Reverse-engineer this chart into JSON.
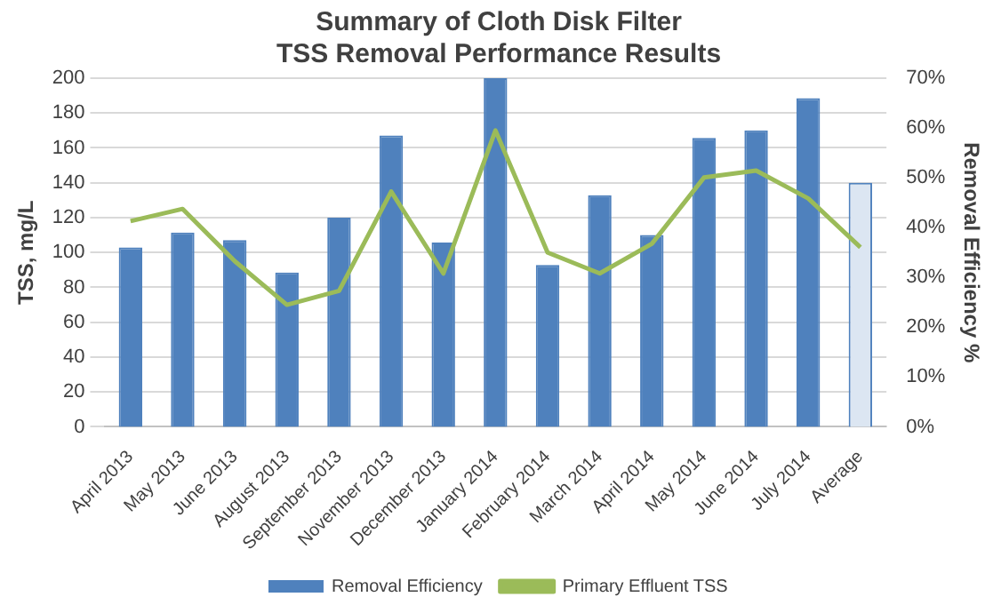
{
  "chart_data": {
    "type": "bar",
    "title": "Summary of Cloth Disk Filter\nTSS Removal Performance Results",
    "ylabel": "TSS, mg/L",
    "y2label": "Removal Efficiency %",
    "categories": [
      "April 2013",
      "May 2013",
      "June 2013",
      "August 2013",
      "September 2013",
      "November 2013",
      "December 2013",
      "January 2014",
      "February 2014",
      "March 2014",
      "April 2014",
      "May 2014",
      "June 2014",
      "July 2014",
      "Average"
    ],
    "series": [
      {
        "name": "Removal Efficiency",
        "axis": "y2",
        "color": "#4f81bd",
        "colors": [
          "#4f81bd",
          "#4f81bd",
          "#4f81bd",
          "#4f81bd",
          "#4f81bd",
          "#4f81bd",
          "#4f81bd",
          "#4f81bd",
          "#4f81bd",
          "#4f81bd",
          "#4f81bd",
          "#4f81bd",
          "#4f81bd",
          "#4f81bd",
          "#dce6f2"
        ],
        "values": [
          36,
          39,
          37.5,
          31,
          42,
          58.5,
          37,
          70,
          32.5,
          46.5,
          38.5,
          58,
          59.5,
          66,
          49
        ]
      },
      {
        "name": "Primary Effluent TSS",
        "type": "line",
        "color": "#9bbb59",
        "values": [
          118,
          125,
          95,
          70,
          78,
          135,
          88,
          170,
          100,
          88,
          105,
          143,
          147,
          131,
          103
        ]
      }
    ],
    "ylim": [
      0,
      200
    ],
    "yticks": [
      0,
      20,
      40,
      60,
      80,
      100,
      120,
      140,
      160,
      180,
      200
    ],
    "y2lim": [
      0,
      70
    ],
    "y2ticks": [
      {
        "value": 0,
        "label": "0%"
      },
      {
        "value": 10,
        "label": "10%"
      },
      {
        "value": 20,
        "label": "20%"
      },
      {
        "value": 30,
        "label": "30%"
      },
      {
        "value": 40,
        "label": "40%"
      },
      {
        "value": 50,
        "label": "50%"
      },
      {
        "value": 60,
        "label": "60%"
      },
      {
        "value": 70,
        "label": "70%"
      }
    ],
    "grid": "y",
    "legend": "bottom",
    "marker": "none"
  }
}
